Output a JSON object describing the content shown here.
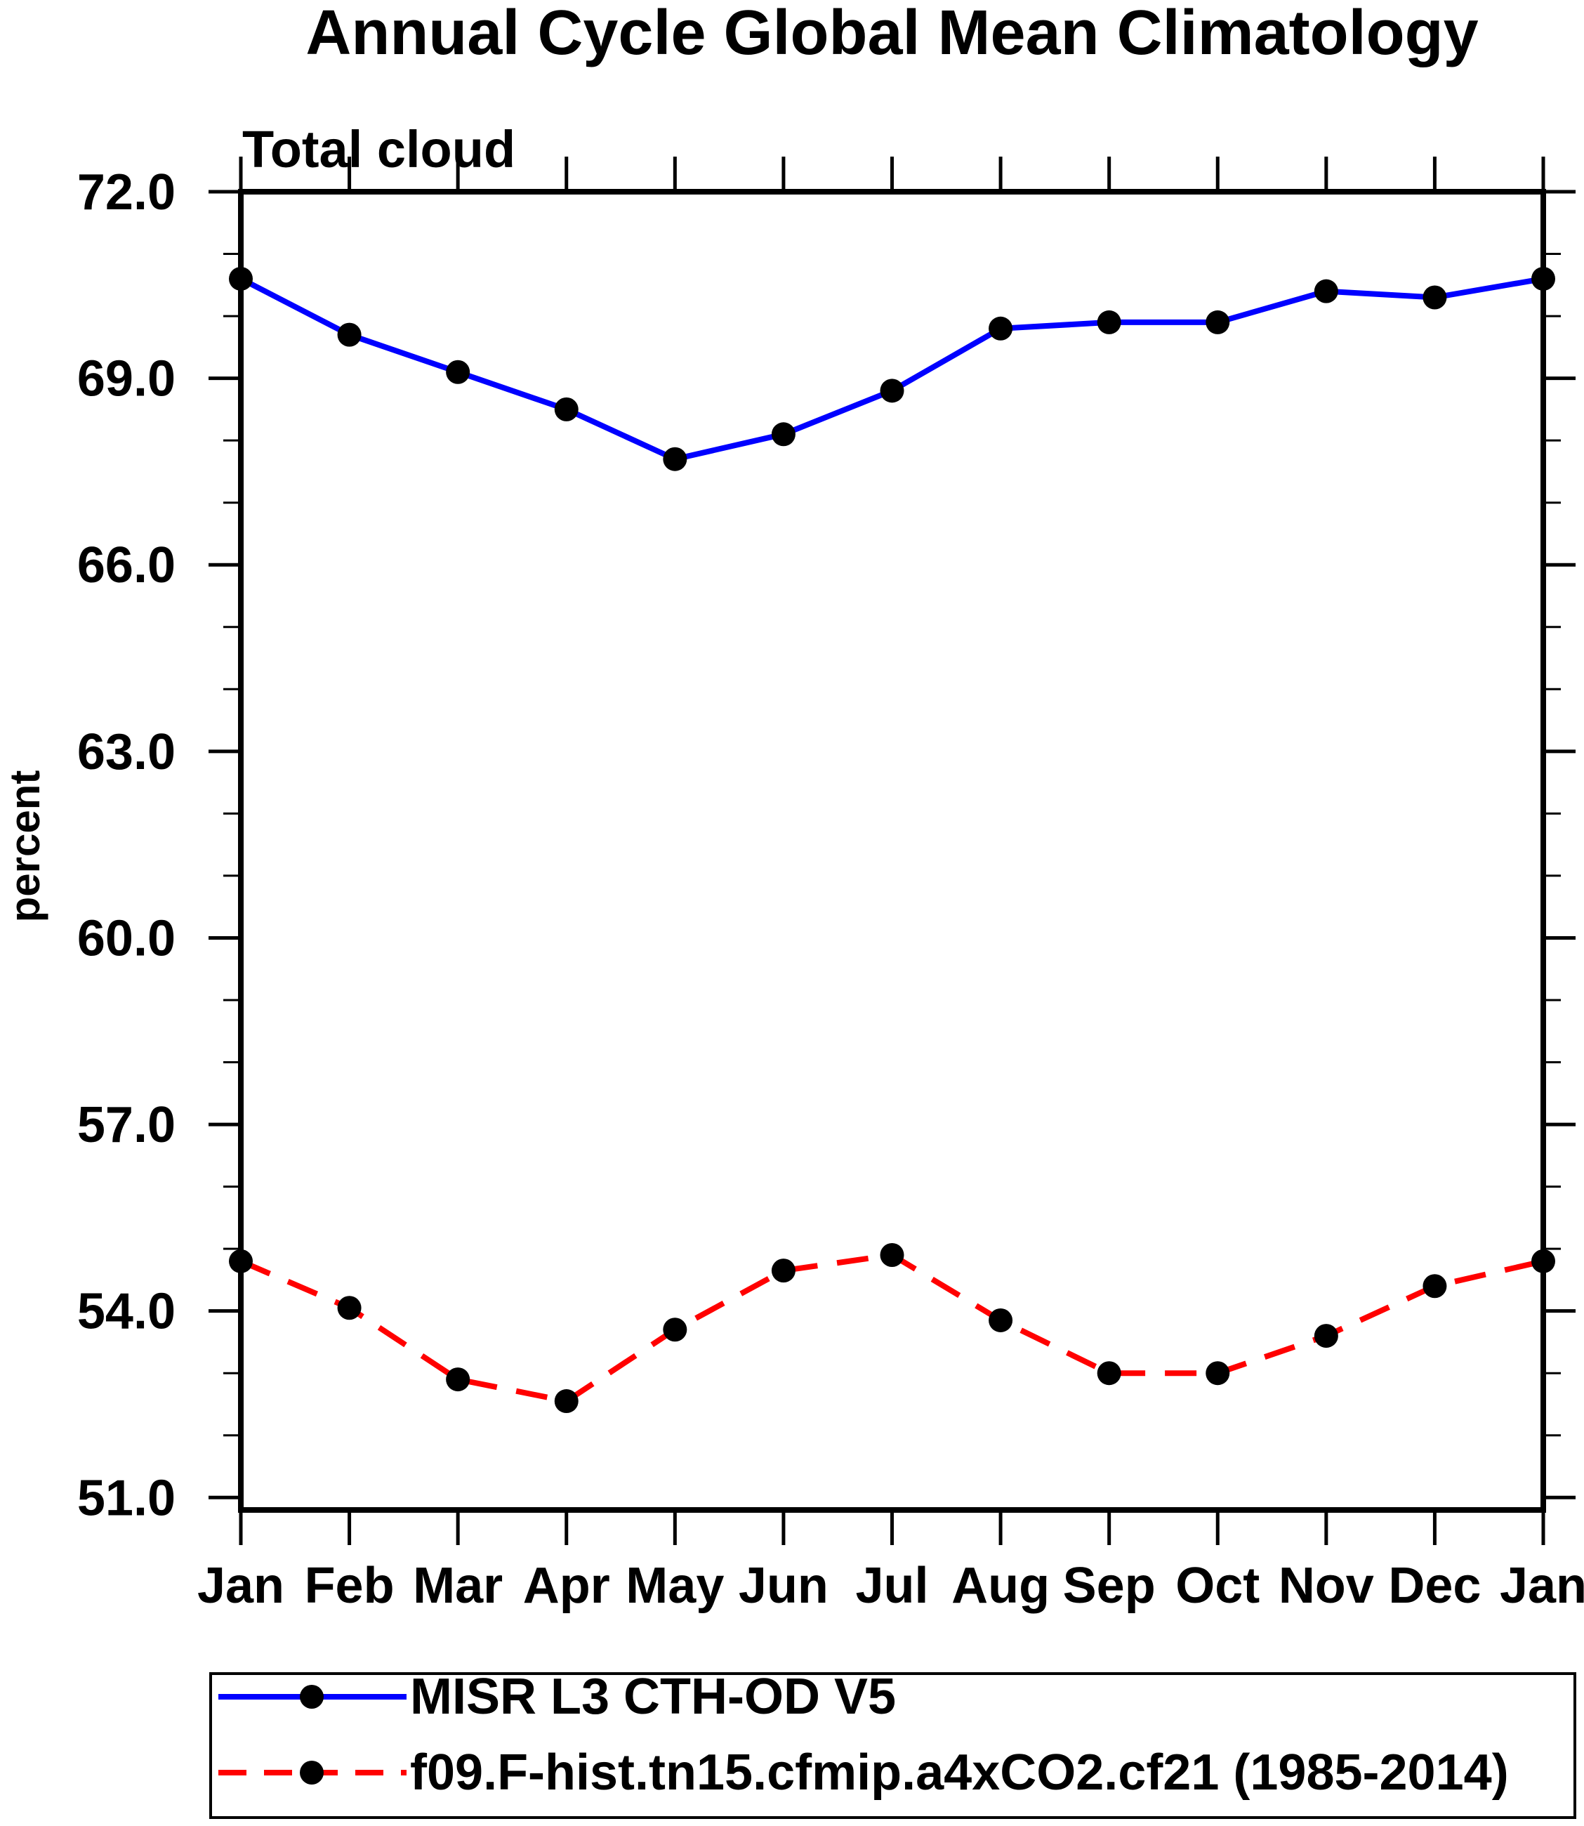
{
  "chart_data": {
    "type": "line",
    "title": "Annual Cycle Global Mean Climatology",
    "subtitle": "Total cloud",
    "ylabel": "percent",
    "categories": [
      "Jan",
      "Feb",
      "Mar",
      "Apr",
      "May",
      "Jun",
      "Jul",
      "Aug",
      "Sep",
      "Oct",
      "Nov",
      "Dec",
      "Jan"
    ],
    "ylim": [
      50.8,
      72.0
    ],
    "ytick_major_values": [
      51.0,
      54.0,
      57.0,
      60.0,
      63.0,
      66.0,
      69.0,
      72.0
    ],
    "ytick_labels": [
      "51.0",
      "54.0",
      "57.0",
      "60.0",
      "63.0",
      "66.0",
      "69.0",
      "72.0"
    ],
    "ytick_minor_interval": 1.0,
    "grid": false,
    "legend_position": "bottom",
    "axis_color": "#000000",
    "marker_color": "#000000",
    "series": [
      {
        "name": "MISR L3 CTH-OD V5",
        "color": "#0000ff",
        "line_style": "solid",
        "marker": "circle",
        "values": [
          70.6,
          69.7,
          69.1,
          68.5,
          67.7,
          68.1,
          68.8,
          69.8,
          69.9,
          69.9,
          70.4,
          70.3,
          70.6
        ]
      },
      {
        "name": "f09.F-hist.tn15.cfmip.a4xCO2.cf21 (1985-2014)",
        "color": "#ff0000",
        "line_style": "dashed",
        "marker": "circle",
        "values": [
          54.8,
          54.05,
          52.9,
          52.55,
          53.7,
          54.65,
          54.9,
          53.85,
          53.0,
          53.0,
          53.6,
          54.4,
          54.8
        ]
      }
    ]
  }
}
